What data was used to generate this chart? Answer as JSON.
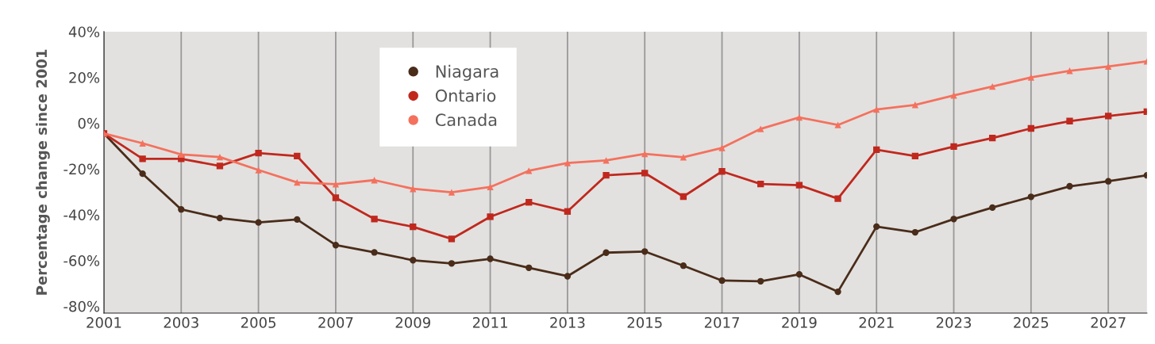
{
  "chart_data": {
    "type": "line",
    "ylabel": "Percentage change since 2001",
    "x": [
      2001,
      2002,
      2003,
      2004,
      2005,
      2006,
      2007,
      2008,
      2009,
      2010,
      2011,
      2012,
      2013,
      2014,
      2015,
      2016,
      2017,
      2018,
      2019,
      2020,
      2021,
      2022,
      2023,
      2024,
      2025,
      2026,
      2027,
      2028
    ],
    "series": [
      {
        "name": "Niagara",
        "color": "#4a2c1a",
        "marker": "circle",
        "values": [
          -4.5,
          -22.1,
          -37.7,
          -41.5,
          -43.4,
          -42.1,
          -53.3,
          -56.5,
          -59.9,
          -61.3,
          -59.3,
          -63.2,
          -66.9,
          -56.6,
          -56.1,
          -62.3,
          -68.8,
          -69.1,
          -66.1,
          -73.7,
          -45.2,
          -47.7,
          -41.9,
          -36.9,
          -32.2,
          -27.6,
          -25.4,
          -22.8
        ]
      },
      {
        "name": "Ontario",
        "color": "#c0281e",
        "marker": "square",
        "values": [
          -4.5,
          -15.6,
          -15.6,
          -18.7,
          -13.1,
          -14.4,
          -32.6,
          -41.9,
          -45.3,
          -50.6,
          -40.9,
          -34.6,
          -38.6,
          -22.8,
          -21.8,
          -32.1,
          -21.1,
          -26.6,
          -27.1,
          -33.0,
          -11.6,
          -14.4,
          -10.2,
          -6.5,
          -2.3,
          0.9,
          3.1,
          5.0
        ]
      },
      {
        "name": "Canada",
        "color": "#f4715e",
        "marker": "triangle",
        "values": [
          -4.5,
          -8.8,
          -13.7,
          -14.8,
          -20.5,
          -25.9,
          -26.7,
          -24.9,
          -28.7,
          -30.2,
          -27.9,
          -20.8,
          -17.4,
          -16.3,
          -13.4,
          -14.9,
          -10.8,
          -2.5,
          2.5,
          -0.8,
          6.0,
          8.0,
          12.1,
          16.0,
          20.0,
          22.9,
          24.8,
          27.0
        ]
      }
    ],
    "xlim": [
      2001,
      2028
    ],
    "xticks": [
      2001,
      2003,
      2005,
      2007,
      2009,
      2011,
      2013,
      2015,
      2017,
      2019,
      2021,
      2023,
      2025,
      2027
    ],
    "ylim": [
      -83,
      40
    ],
    "yticks": [
      {
        "value": -80,
        "label": "-80%"
      },
      {
        "value": -60,
        "label": "-60%"
      },
      {
        "value": -40,
        "label": "-40%"
      },
      {
        "value": -20,
        "label": "-20%"
      },
      {
        "value": 0,
        "label": "0%"
      },
      {
        "value": 20,
        "label": "20%"
      },
      {
        "value": 40,
        "label": "40%"
      }
    ],
    "grid": "x",
    "legend": "top",
    "line_style": "solid"
  }
}
